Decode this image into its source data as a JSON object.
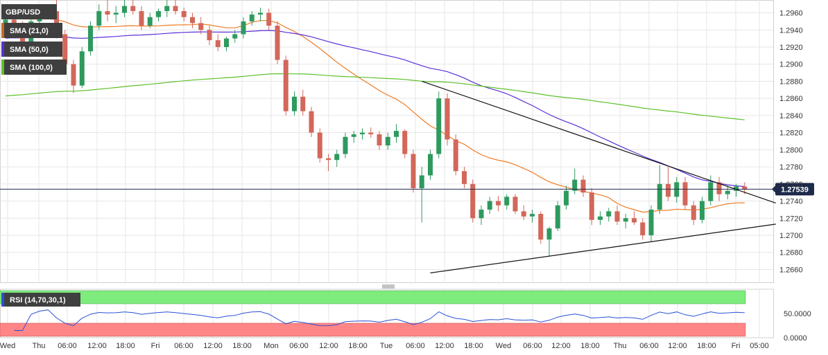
{
  "chart_data": {
    "type": "candlestick",
    "symbol": "GBP/USD",
    "price_axis": {
      "min": 1.2645,
      "max": 1.2975,
      "ticks": [
        "1.2960",
        "1.2940",
        "1.2920",
        "1.2900",
        "1.2880",
        "1.2860",
        "1.2840",
        "1.2820",
        "1.2800",
        "1.2780",
        "1.2760",
        "1.2740",
        "1.2720",
        "1.2700",
        "1.2680",
        "1.2660"
      ]
    },
    "current_price": 1.27539,
    "current_price_label": "1.27539",
    "indicators": [
      {
        "label": "SMA (21,0)",
        "color": "#f07a20",
        "legend_swatch": "#cc6a1a"
      },
      {
        "label": "SMA (50,0)",
        "color": "#5a2ed6",
        "legend_swatch": "#5a2ed6"
      },
      {
        "label": "SMA (100,0)",
        "color": "#5cc02a",
        "legend_swatch": "#5cc02a"
      }
    ],
    "time_axis": [
      "Wed",
      "Thu",
      "06:00",
      "12:00",
      "18:00",
      "Fri",
      "06:00",
      "12:00",
      "18:00",
      "Mon",
      "06:00",
      "12:00",
      "18:00",
      "Tue",
      "06:00",
      "12:00",
      "18:00",
      "Wed",
      "06:00",
      "12:00",
      "18:00",
      "Thu",
      "06:00",
      "12:00",
      "18:00",
      "Fri",
      "05:00"
    ],
    "ohlc": [
      [
        1.294,
        1.2962,
        1.2932,
        1.2952
      ],
      [
        1.2952,
        1.296,
        1.2938,
        1.2944
      ],
      [
        1.2944,
        1.295,
        1.2918,
        1.2924
      ],
      [
        1.2924,
        1.2955,
        1.292,
        1.295
      ],
      [
        1.295,
        1.2965,
        1.2946,
        1.2958
      ],
      [
        1.2958,
        1.297,
        1.2952,
        1.2962
      ],
      [
        1.2962,
        1.2975,
        1.293,
        1.2935
      ],
      [
        1.2935,
        1.294,
        1.2895,
        1.29
      ],
      [
        1.29,
        1.2905,
        1.2866,
        1.2875
      ],
      [
        1.2875,
        1.292,
        1.2872,
        1.2915
      ],
      [
        1.2915,
        1.295,
        1.291,
        1.2945
      ],
      [
        1.2945,
        1.297,
        1.294,
        1.2962
      ],
      [
        1.2962,
        1.2975,
        1.295,
        1.2958
      ],
      [
        1.2958,
        1.2968,
        1.2948,
        1.296
      ],
      [
        1.296,
        1.2975,
        1.2955,
        1.2968
      ],
      [
        1.2968,
        1.2975,
        1.2958,
        1.2962
      ],
      [
        1.2962,
        1.2968,
        1.294,
        1.2945
      ],
      [
        1.2945,
        1.296,
        1.2942,
        1.2955
      ],
      [
        1.2955,
        1.2965,
        1.295,
        1.2962
      ],
      [
        1.2962,
        1.2975,
        1.2955,
        1.2968
      ],
      [
        1.2968,
        1.2975,
        1.2958,
        1.2962
      ],
      [
        1.2962,
        1.2966,
        1.295,
        1.2955
      ],
      [
        1.2955,
        1.296,
        1.2942,
        1.2948
      ],
      [
        1.2948,
        1.2955,
        1.2935,
        1.294
      ],
      [
        1.294,
        1.2945,
        1.2922,
        1.2928
      ],
      [
        1.2928,
        1.2935,
        1.2915,
        1.292
      ],
      [
        1.292,
        1.2932,
        1.2915,
        1.293
      ],
      [
        1.293,
        1.294,
        1.2925,
        1.2935
      ],
      [
        1.2935,
        1.2955,
        1.293,
        1.295
      ],
      [
        1.295,
        1.2962,
        1.2945,
        1.2958
      ],
      [
        1.2958,
        1.2966,
        1.295,
        1.296
      ],
      [
        1.296,
        1.2965,
        1.294,
        1.2945
      ],
      [
        1.2945,
        1.295,
        1.29,
        1.2905
      ],
      [
        1.2905,
        1.291,
        1.284,
        1.2845
      ],
      [
        1.2845,
        1.2868,
        1.284,
        1.2862
      ],
      [
        1.2862,
        1.287,
        1.284,
        1.2845
      ],
      [
        1.2845,
        1.285,
        1.2815,
        1.282
      ],
      [
        1.282,
        1.2825,
        1.2785,
        1.279
      ],
      [
        1.279,
        1.2795,
        1.2775,
        1.2788
      ],
      [
        1.2788,
        1.28,
        1.278,
        1.2795
      ],
      [
        1.2795,
        1.282,
        1.279,
        1.2815
      ],
      [
        1.2815,
        1.2822,
        1.2808,
        1.2818
      ],
      [
        1.2818,
        1.2825,
        1.2812,
        1.282
      ],
      [
        1.282,
        1.2826,
        1.2814,
        1.2818
      ],
      [
        1.2818,
        1.2822,
        1.28,
        1.2805
      ],
      [
        1.2805,
        1.282,
        1.28,
        1.2815
      ],
      [
        1.2815,
        1.283,
        1.2808,
        1.2822
      ],
      [
        1.2822,
        1.2824,
        1.279,
        1.2795
      ],
      [
        1.2795,
        1.28,
        1.275,
        1.2755
      ],
      [
        1.2755,
        1.278,
        1.2715,
        1.277
      ],
      [
        1.277,
        1.28,
        1.2765,
        1.2795
      ],
      [
        1.2795,
        1.2868,
        1.279,
        1.286
      ],
      [
        1.286,
        1.2866,
        1.2805,
        1.2812
      ],
      [
        1.2812,
        1.2818,
        1.277,
        1.2775
      ],
      [
        1.2775,
        1.278,
        1.2755,
        1.276
      ],
      [
        1.276,
        1.2765,
        1.2715,
        1.272
      ],
      [
        1.272,
        1.2735,
        1.2712,
        1.273
      ],
      [
        1.273,
        1.2745,
        1.2725,
        1.274
      ],
      [
        1.274,
        1.2746,
        1.2728,
        1.2735
      ],
      [
        1.2735,
        1.2748,
        1.273,
        1.2745
      ],
      [
        1.2745,
        1.2748,
        1.2725,
        1.2728
      ],
      [
        1.2728,
        1.2735,
        1.2718,
        1.2722
      ],
      [
        1.2722,
        1.273,
        1.2715,
        1.2725
      ],
      [
        1.2725,
        1.2728,
        1.269,
        1.2695
      ],
      [
        1.2695,
        1.271,
        1.2676,
        1.2708
      ],
      [
        1.2708,
        1.274,
        1.2705,
        1.2735
      ],
      [
        1.2735,
        1.2758,
        1.273,
        1.2752
      ],
      [
        1.2752,
        1.2778,
        1.2748,
        1.2765
      ],
      [
        1.2765,
        1.277,
        1.2745,
        1.275
      ],
      [
        1.275,
        1.2755,
        1.2712,
        1.2718
      ],
      [
        1.2718,
        1.2728,
        1.2712,
        1.2722
      ],
      [
        1.2722,
        1.2732,
        1.2716,
        1.2728
      ],
      [
        1.2728,
        1.2735,
        1.2712,
        1.2716
      ],
      [
        1.2716,
        1.2725,
        1.2708,
        1.272
      ],
      [
        1.272,
        1.2728,
        1.2712,
        1.2715
      ],
      [
        1.2715,
        1.272,
        1.2695,
        1.27
      ],
      [
        1.27,
        1.2735,
        1.2692,
        1.273
      ],
      [
        1.273,
        1.2782,
        1.2725,
        1.276
      ],
      [
        1.276,
        1.278,
        1.274,
        1.2745
      ],
      [
        1.2745,
        1.2768,
        1.2738,
        1.2762
      ],
      [
        1.2762,
        1.2768,
        1.273,
        1.2735
      ],
      [
        1.2735,
        1.274,
        1.2712,
        1.2718
      ],
      [
        1.2718,
        1.2745,
        1.2714,
        1.274
      ],
      [
        1.274,
        1.277,
        1.2735,
        1.2762
      ],
      [
        1.2762,
        1.2768,
        1.274,
        1.2748
      ],
      [
        1.2748,
        1.2758,
        1.2742,
        1.2752
      ],
      [
        1.2752,
        1.276,
        1.2745,
        1.2757
      ],
      [
        1.2757,
        1.2762,
        1.2748,
        1.2754
      ]
    ],
    "trendlines": [
      {
        "label": "descending",
        "from": {
          "bar": 49,
          "price": 1.288
        },
        "to": {
          "bar": 87,
          "price": 1.275
        }
      },
      {
        "label": "ascending",
        "from": {
          "bar": 50,
          "price": 1.2656
        },
        "to": {
          "bar": 87,
          "price": 1.2708
        }
      }
    ],
    "rsi": {
      "label": "RSI (14,70,30,1)",
      "overbought": 70,
      "oversold": 30,
      "ymin": 0,
      "ymax": 100,
      "ticks": [
        "50.0000",
        "0.0000"
      ],
      "line_color": "#2a4fd6"
    }
  },
  "ui": {
    "bull_color": "#2e9a5e",
    "bear_color": "#d2675a",
    "tag_bg": "#3f3f3f",
    "price_tag_bg": "#1d2a4a",
    "grid_color": "#e6e6e6",
    "trend_color": "#111111",
    "rsi_ob_color": "#7dec7d",
    "rsi_os_color": "#ff8686"
  }
}
